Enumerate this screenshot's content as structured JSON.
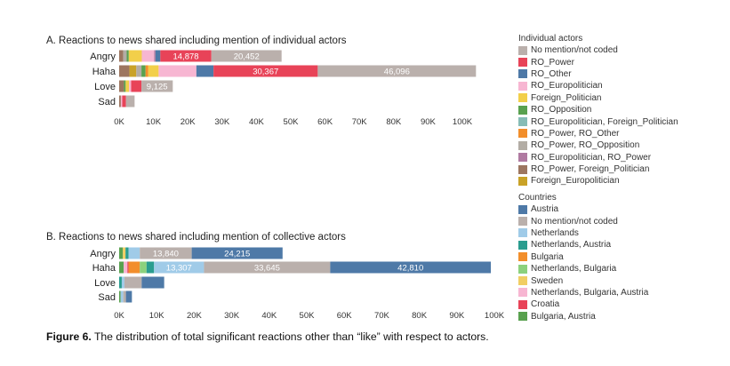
{
  "caption": {
    "label": "Figure 6.",
    "text": " The distribution of total significant reactions other than “like” with respect to actors."
  },
  "legends": {
    "individual": {
      "title": "Individual actors",
      "items": [
        {
          "label": "No mention/not coded",
          "color": "#bab0ac"
        },
        {
          "label": "RO_Power",
          "color": "#e84358"
        },
        {
          "label": "RO_Other",
          "color": "#4e79a7"
        },
        {
          "label": "RO_Europolitician",
          "color": "#f7b6d2"
        },
        {
          "label": "Foreign_Politician",
          "color": "#f2cf4a"
        },
        {
          "label": "RO_Opposition",
          "color": "#59a14f"
        },
        {
          "label": "RO_Europolitician, Foreign_Politician",
          "color": "#86bcb6"
        },
        {
          "label": "RO_Power, RO_Other",
          "color": "#f28e2b"
        },
        {
          "label": "RO_Power, RO_Opposition",
          "color": "#b3ada5"
        },
        {
          "label": "RO_Europolitician, RO_Power",
          "color": "#b07aa1"
        },
        {
          "label": "RO_Power, Foreign_Politician",
          "color": "#9d7660"
        },
        {
          "label": "Foreign_Europolitician",
          "color": "#c9a227"
        }
      ]
    },
    "collective": {
      "title": "Countries",
      "items": [
        {
          "label": "Austria",
          "color": "#4e79a7"
        },
        {
          "label": "No mention/not coded",
          "color": "#bab0ac"
        },
        {
          "label": "Netherlands",
          "color": "#a0cbe8"
        },
        {
          "label": "Netherlands, Austria",
          "color": "#2a9d8f"
        },
        {
          "label": "Bulgaria",
          "color": "#f28e2b"
        },
        {
          "label": "Netherlands, Bulgaria",
          "color": "#8cd17d"
        },
        {
          "label": "Sweden",
          "color": "#f1ce63"
        },
        {
          "label": "Netherlands, Bulgaria, Austria",
          "color": "#f7b6d2"
        },
        {
          "label": "Croatia",
          "color": "#e84358"
        },
        {
          "label": "Bulgaria, Austria",
          "color": "#59a14f"
        }
      ]
    }
  },
  "chart_data": [
    {
      "type": "bar",
      "orientation": "horizontal",
      "stacked": true,
      "title": "A. Reactions to news shared including mention of individual actors",
      "categories": [
        "Angry",
        "Haha",
        "Love",
        "Sad"
      ],
      "xlim": [
        0,
        105000
      ],
      "xticks": [
        "0K",
        "10K",
        "20K",
        "30K",
        "40K",
        "50K",
        "60K",
        "70K",
        "80K",
        "90K",
        "100K"
      ],
      "xtick_values": [
        0,
        10000,
        20000,
        30000,
        40000,
        50000,
        60000,
        70000,
        80000,
        90000,
        100000
      ],
      "bars": [
        {
          "category": "Angry",
          "segments": [
            {
              "series": "RO_Power, Foreign_Politician",
              "value": 1200,
              "color": "#9d7660"
            },
            {
              "series": "RO_Power, RO_Opposition",
              "value": 1000,
              "color": "#b3ada5"
            },
            {
              "series": "RO_Opposition",
              "value": 600,
              "color": "#59a14f"
            },
            {
              "series": "Foreign_Politician",
              "value": 3800,
              "color": "#f2cf4a"
            },
            {
              "series": "RO_Europolitician",
              "value": 3600,
              "color": "#f7b6d2"
            },
            {
              "series": "RO_Europolitician, RO_Power",
              "value": 400,
              "color": "#b07aa1"
            },
            {
              "series": "RO_Other",
              "value": 1400,
              "color": "#4e79a7"
            },
            {
              "series": "RO_Power",
              "value": 14878,
              "color": "#e84358",
              "label": "14,878"
            },
            {
              "series": "No mention/not coded",
              "value": 20452,
              "color": "#bab0ac",
              "label": "20,452"
            }
          ]
        },
        {
          "category": "Haha",
          "segments": [
            {
              "series": "RO_Power, Foreign_Politician",
              "value": 3000,
              "color": "#9d7660"
            },
            {
              "series": "Foreign_Europolitician",
              "value": 2000,
              "color": "#c9a227"
            },
            {
              "series": "RO_Power, RO_Opposition",
              "value": 1500,
              "color": "#b3ada5"
            },
            {
              "series": "RO_Opposition",
              "value": 1200,
              "color": "#59a14f"
            },
            {
              "series": "RO_Power, RO_Other",
              "value": 800,
              "color": "#f28e2b"
            },
            {
              "series": "Foreign_Politician",
              "value": 3000,
              "color": "#f2cf4a"
            },
            {
              "series": "RO_Europolitician",
              "value": 11000,
              "color": "#f7b6d2"
            },
            {
              "series": "RO_Other",
              "value": 5000,
              "color": "#4e79a7"
            },
            {
              "series": "RO_Power",
              "value": 30367,
              "color": "#e84358",
              "label": "30,367"
            },
            {
              "series": "No mention/not coded",
              "value": 46096,
              "color": "#bab0ac",
              "label": "46,096"
            }
          ]
        },
        {
          "category": "Love",
          "segments": [
            {
              "series": "RO_Power, Foreign_Politician",
              "value": 1400,
              "color": "#9d7660"
            },
            {
              "series": "RO_Opposition",
              "value": 500,
              "color": "#59a14f"
            },
            {
              "series": "Foreign_Politician",
              "value": 1000,
              "color": "#f2cf4a"
            },
            {
              "series": "RO_Europolitician",
              "value": 600,
              "color": "#f7b6d2"
            },
            {
              "series": "RO_Power",
              "value": 3000,
              "color": "#e84358"
            },
            {
              "series": "No mention/not coded",
              "value": 9125,
              "color": "#bab0ac",
              "label": "9,125"
            }
          ]
        },
        {
          "category": "Sad",
          "segments": [
            {
              "series": "RO_Power, Foreign_Politician",
              "value": 500,
              "color": "#9d7660"
            },
            {
              "series": "RO_Europolitician",
              "value": 400,
              "color": "#f7b6d2"
            },
            {
              "series": "RO_Power",
              "value": 1100,
              "color": "#e84358"
            },
            {
              "series": "No mention/not coded",
              "value": 2500,
              "color": "#bab0ac"
            }
          ]
        }
      ]
    },
    {
      "type": "bar",
      "orientation": "horizontal",
      "stacked": true,
      "title": "B. Reactions to news shared including mention of collective actors",
      "categories": [
        "Angry",
        "Haha",
        "Love",
        "Sad"
      ],
      "xlim": [
        0,
        102000
      ],
      "xticks": [
        "0K",
        "10K",
        "20K",
        "30K",
        "40K",
        "50K",
        "60K",
        "70K",
        "80K",
        "90K",
        "100K"
      ],
      "xtick_values": [
        0,
        10000,
        20000,
        30000,
        40000,
        50000,
        60000,
        70000,
        80000,
        90000,
        100000
      ],
      "bars": [
        {
          "category": "Angry",
          "segments": [
            {
              "series": "Bulgaria, Austria",
              "value": 1000,
              "color": "#59a14f"
            },
            {
              "series": "Sweden",
              "value": 700,
              "color": "#f1ce63"
            },
            {
              "series": "Netherlands, Austria",
              "value": 800,
              "color": "#2a9d8f"
            },
            {
              "series": "Netherlands",
              "value": 3000,
              "color": "#a0cbe8"
            },
            {
              "series": "No mention/not coded",
              "value": 13840,
              "color": "#bab0ac",
              "label": "13,840"
            },
            {
              "series": "Austria",
              "value": 24215,
              "color": "#4e79a7",
              "label": "24,215"
            }
          ]
        },
        {
          "category": "Haha",
          "segments": [
            {
              "series": "Bulgaria, Austria",
              "value": 1200,
              "color": "#59a14f"
            },
            {
              "series": "Netherlands, Bulgaria, Austria",
              "value": 1000,
              "color": "#f7b6d2"
            },
            {
              "series": "Croatia",
              "value": 300,
              "color": "#e84358"
            },
            {
              "series": "Bulgaria",
              "value": 3000,
              "color": "#f28e2b"
            },
            {
              "series": "Netherlands, Bulgaria",
              "value": 1800,
              "color": "#8cd17d"
            },
            {
              "series": "Netherlands, Austria",
              "value": 2000,
              "color": "#2a9d8f"
            },
            {
              "series": "Netherlands",
              "value": 13307,
              "color": "#a0cbe8",
              "label": "13,307"
            },
            {
              "series": "No mention/not coded",
              "value": 33645,
              "color": "#bab0ac",
              "label": "33,645"
            },
            {
              "series": "Austria",
              "value": 42810,
              "color": "#4e79a7",
              "label": "42,810"
            }
          ]
        },
        {
          "category": "Love",
          "segments": [
            {
              "series": "Netherlands, Austria",
              "value": 700,
              "color": "#2a9d8f"
            },
            {
              "series": "Netherlands",
              "value": 700,
              "color": "#a0cbe8"
            },
            {
              "series": "No mention/not coded",
              "value": 4600,
              "color": "#bab0ac"
            },
            {
              "series": "Austria",
              "value": 6000,
              "color": "#4e79a7"
            }
          ]
        },
        {
          "category": "Sad",
          "segments": [
            {
              "series": "Bulgaria, Austria",
              "value": 400,
              "color": "#59a14f"
            },
            {
              "series": "Netherlands",
              "value": 700,
              "color": "#a0cbe8"
            },
            {
              "series": "No mention/not coded",
              "value": 700,
              "color": "#bab0ac"
            },
            {
              "series": "Austria",
              "value": 1600,
              "color": "#4e79a7"
            }
          ]
        }
      ]
    }
  ]
}
